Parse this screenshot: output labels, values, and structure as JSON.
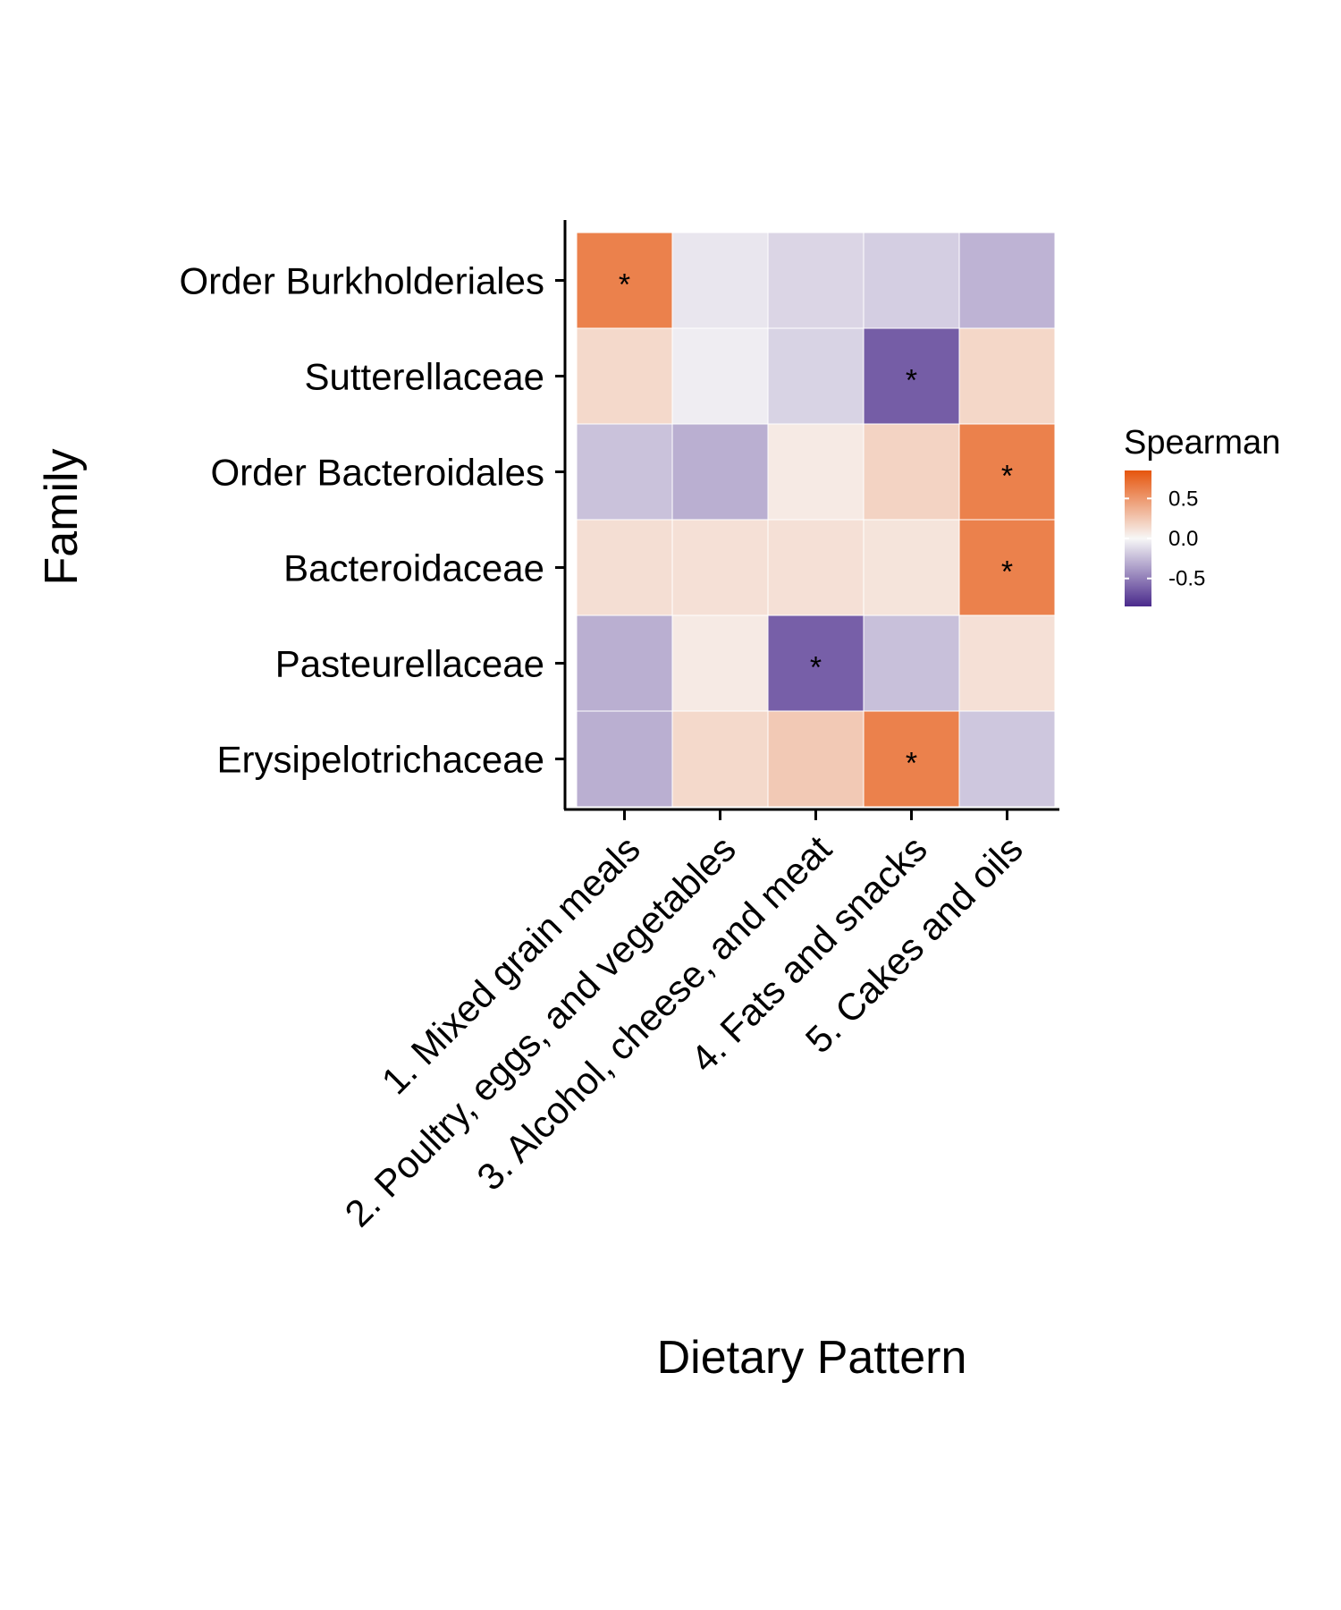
{
  "chart_data": {
    "type": "heatmap",
    "xlabel": "Dietary Pattern",
    "ylabel": "Family",
    "x_categories": [
      "1. Mixed grain meals",
      "2. Poultry, eggs, and vegetables",
      "3. Alcohol, cheese, and meat",
      "4. Fats and snacks",
      "5. Cakes and oils"
    ],
    "y_categories": [
      "Order Burkholderiales",
      "Sutterellaceae",
      "Order Bacteroidales",
      "Bacteroidaceae",
      "Pasteurellaceae",
      "Erysipelotrichaceae"
    ],
    "values": [
      [
        0.62,
        -0.07,
        -0.14,
        -0.17,
        -0.28
      ],
      [
        0.16,
        -0.04,
        -0.15,
        -0.64,
        0.17
      ],
      [
        -0.22,
        -0.3,
        0.07,
        0.19,
        0.62
      ],
      [
        0.13,
        0.12,
        0.12,
        0.1,
        0.62
      ],
      [
        -0.3,
        0.07,
        -0.63,
        -0.23,
        0.12
      ],
      [
        -0.3,
        0.16,
        0.24,
        0.62,
        -0.2
      ]
    ],
    "significant": [
      [
        true,
        false,
        false,
        false,
        false
      ],
      [
        false,
        false,
        false,
        true,
        false
      ],
      [
        false,
        false,
        false,
        false,
        true
      ],
      [
        false,
        false,
        false,
        false,
        true
      ],
      [
        false,
        false,
        true,
        false,
        false
      ],
      [
        false,
        false,
        false,
        true,
        false
      ]
    ],
    "significance_marker": "*",
    "legend": {
      "title": "Spearman",
      "ticks": [
        "0.5",
        "0.0",
        "-0.5"
      ],
      "tick_values": [
        0.5,
        0.0,
        -0.5
      ],
      "range": [
        -0.85,
        0.85
      ],
      "placement": "right"
    },
    "colors": {
      "low": "#4a2a8c",
      "mid": "#f7f7f7",
      "high": "#e6550d"
    },
    "grid": false
  }
}
